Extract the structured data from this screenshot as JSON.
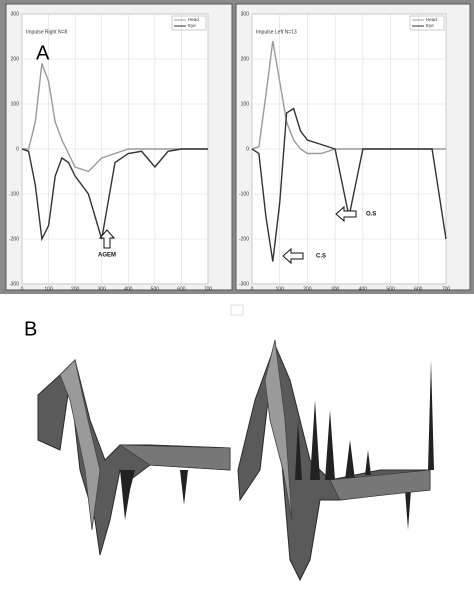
{
  "panel_labels": [
    "A",
    "B"
  ],
  "chart_data": [
    {
      "type": "line",
      "title": "Impulse Right  N=8",
      "x": [
        0,
        25,
        50,
        75,
        100,
        125,
        150,
        175,
        200,
        250,
        300,
        350,
        400,
        450,
        500,
        550,
        600,
        650,
        700
      ],
      "series": [
        {
          "name": "Head",
          "color": "#9a9a9a",
          "values": [
            0,
            0,
            60,
            190,
            150,
            60,
            20,
            -10,
            -40,
            -50,
            -20,
            -10,
            0,
            0,
            0,
            0,
            0,
            0,
            0
          ]
        },
        {
          "name": "Eye",
          "color": "#333333",
          "values": [
            0,
            -5,
            -80,
            -200,
            -170,
            -60,
            -20,
            -30,
            -60,
            -100,
            -200,
            -30,
            -10,
            -5,
            -40,
            -5,
            0,
            0,
            0
          ]
        }
      ],
      "xlim": [
        0,
        700
      ],
      "xticks": [
        0,
        100,
        200,
        300,
        400,
        500,
        600,
        700
      ],
      "ylim": [
        -300,
        300
      ],
      "yticks": [
        -300,
        -200,
        -100,
        0,
        100,
        200,
        300
      ],
      "grid": true,
      "legend": "top-right",
      "annotations": [
        "AGEM"
      ]
    },
    {
      "type": "line",
      "title": "Impulse Left    N=13",
      "x": [
        0,
        25,
        50,
        75,
        100,
        125,
        150,
        175,
        200,
        250,
        300,
        350,
        400,
        450,
        500,
        550,
        600,
        650,
        700
      ],
      "series": [
        {
          "name": "Head",
          "color": "#9a9a9a",
          "values": [
            0,
            5,
            120,
            240,
            150,
            60,
            20,
            0,
            -10,
            -10,
            0,
            0,
            0,
            0,
            0,
            0,
            0,
            0,
            0
          ]
        },
        {
          "name": "Eye",
          "color": "#333333",
          "values": [
            0,
            -10,
            -150,
            -250,
            -120,
            80,
            90,
            40,
            20,
            10,
            0,
            -150,
            0,
            0,
            0,
            0,
            0,
            0,
            -200
          ]
        }
      ],
      "xlim": [
        0,
        700
      ],
      "xticks": [
        0,
        100,
        200,
        300,
        400,
        500,
        600,
        700
      ],
      "ylim": [
        -300,
        300
      ],
      "yticks": [
        -300,
        -200,
        -100,
        0,
        100,
        200,
        300
      ],
      "grid": true,
      "legend": "top-right",
      "annotations": [
        "O.S",
        "C.S"
      ]
    }
  ]
}
